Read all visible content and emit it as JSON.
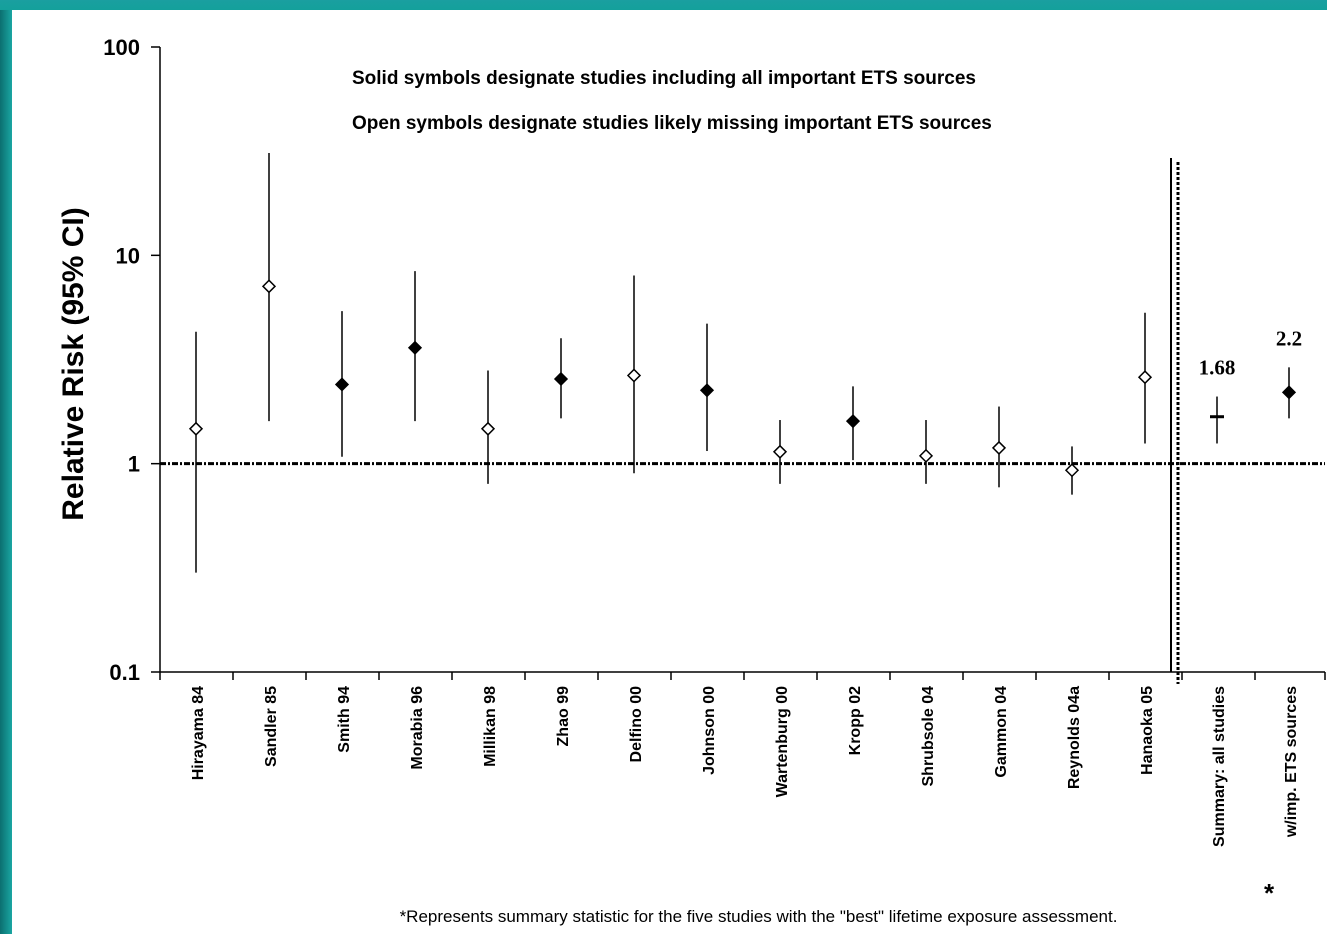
{
  "chart_data": {
    "type": "scatter",
    "scale": "log",
    "ylabel": "Relative Risk (95% CI)",
    "ylim": [
      0.1,
      100
    ],
    "yticks": [
      "0.1",
      "1",
      "10",
      "100"
    ],
    "reference_line": 1,
    "legend_notes": [
      "Solid symbols designate studies including all important ETS sources",
      "Open symbols designate studies likely missing important ETS sources"
    ],
    "studies": [
      {
        "label": "Hirayama 84",
        "rr": 1.47,
        "lo": 0.3,
        "hi": 4.3,
        "solid": false
      },
      {
        "label": "Sandler 85",
        "rr": 7.1,
        "lo": 1.6,
        "hi": 31,
        "solid": false
      },
      {
        "label": "Smith 94",
        "rr": 2.4,
        "lo": 1.08,
        "hi": 5.4,
        "solid": true
      },
      {
        "label": "Morabia 96",
        "rr": 3.6,
        "lo": 1.6,
        "hi": 8.4,
        "solid": true
      },
      {
        "label": "Millikan 98",
        "rr": 1.47,
        "lo": 0.8,
        "hi": 2.8,
        "solid": false
      },
      {
        "label": "Zhao 99",
        "rr": 2.55,
        "lo": 1.65,
        "hi": 4.0,
        "solid": true
      },
      {
        "label": "Delfino 00",
        "rr": 2.65,
        "lo": 0.9,
        "hi": 8.0,
        "solid": false
      },
      {
        "label": "Johnson 00",
        "rr": 2.25,
        "lo": 1.15,
        "hi": 4.7,
        "solid": true
      },
      {
        "label": "Wartenburg 00",
        "rr": 1.14,
        "lo": 0.8,
        "hi": 1.62,
        "solid": false
      },
      {
        "label": "Kropp 02",
        "rr": 1.6,
        "lo": 1.04,
        "hi": 2.35,
        "solid": true
      },
      {
        "label": "Shrubsole 04",
        "rr": 1.09,
        "lo": 0.8,
        "hi": 1.62,
        "solid": false
      },
      {
        "label": "Gammon 04",
        "rr": 1.19,
        "lo": 0.77,
        "hi": 1.88,
        "solid": false
      },
      {
        "label": "Reynolds 04a",
        "rr": 0.93,
        "lo": 0.71,
        "hi": 1.21,
        "solid": false
      },
      {
        "label": "Hanaoka 05",
        "rr": 2.6,
        "lo": 1.25,
        "hi": 5.3,
        "solid": false
      }
    ],
    "summaries": [
      {
        "label": "Summary: all studies",
        "rr": 1.68,
        "lo": 1.25,
        "hi": 2.1,
        "marker": "dash",
        "value_label": "1.68"
      },
      {
        "label": "w/imp. ETS sources",
        "rr": 2.2,
        "lo": 1.65,
        "hi": 2.9,
        "marker": "diamond",
        "value_label": "2.2",
        "asterisk": "*"
      }
    ],
    "footnote": "*Represents summary statistic for the five studies with the \"best\" lifetime exposure assessment."
  }
}
